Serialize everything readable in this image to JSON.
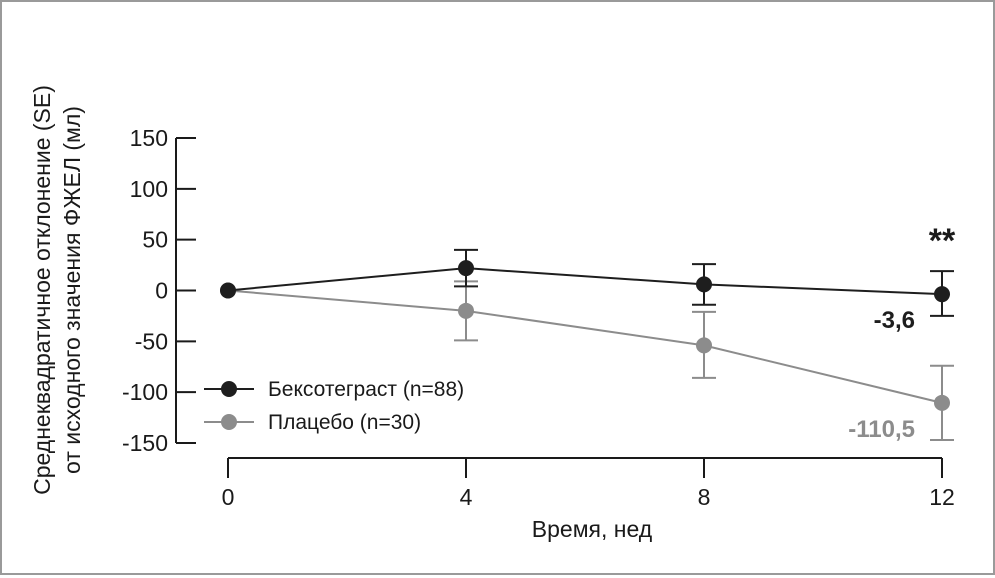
{
  "chart_data": {
    "type": "line",
    "ylabel_line1": "Среднеквадратичное отклонение (SE)",
    "ylabel_line2": "от исходного значения ФЖЕЛ (мл)",
    "xlabel": "Время, нед",
    "x": [
      0,
      4,
      8,
      12
    ],
    "xticks": [
      "0",
      "4",
      "8",
      "12"
    ],
    "yticks": [
      "150",
      "100",
      "50",
      "0",
      "-50",
      "-100",
      "-150"
    ],
    "ylim": [
      -150,
      150
    ],
    "xlim": [
      0,
      12
    ],
    "legend_position": "lower-left",
    "series": [
      {
        "name": "Бексотеграст (n=88)",
        "color": "#1e1e1e",
        "values": [
          0,
          22,
          6,
          -3.6
        ],
        "err_low": [
          0,
          4,
          -14,
          -25
        ],
        "err_high": [
          0,
          40,
          26,
          19
        ]
      },
      {
        "name": "Плацебо (n=30)",
        "color": "#8c8c8c",
        "values": [
          0,
          -20,
          -54,
          -110.5
        ],
        "err_low": [
          0,
          -49,
          -86,
          -147
        ],
        "err_high": [
          0,
          9,
          -21,
          -74
        ]
      }
    ],
    "annotations": {
      "end_label_1": "-3,6",
      "end_label_2": "-110,5",
      "significance": "**"
    }
  }
}
